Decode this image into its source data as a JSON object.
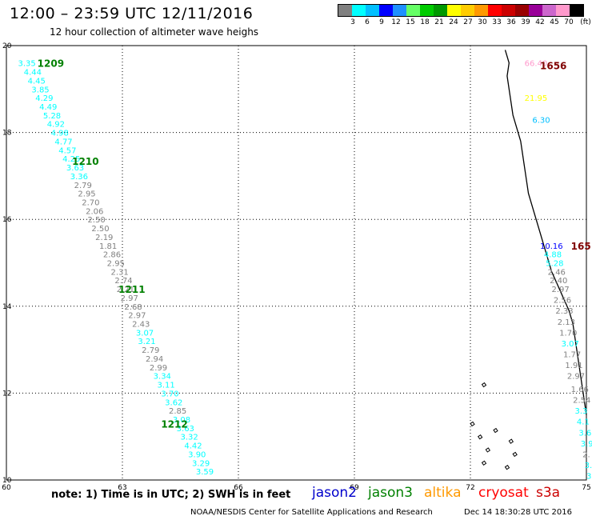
{
  "header": {
    "title": "12:00 – 23:59 UTC 12/11/2016",
    "subtitle": "12 hour collection of altimeter wave heighs"
  },
  "legend": {
    "colors": [
      "#808080",
      "#00ffff",
      "#00bfff",
      "#0000ff",
      "#1e90ff",
      "#66ff66",
      "#00cc00",
      "#009900",
      "#ffff00",
      "#ffcc00",
      "#ff9900",
      "#ff0000",
      "#cc0000",
      "#990000",
      "#990099",
      "#cc66cc",
      "#ff99cc",
      "#000000"
    ],
    "labels": [
      "3",
      "6",
      "9",
      "12",
      "15",
      "18",
      "21",
      "24",
      "27",
      "30",
      "33",
      "36",
      "39",
      "42",
      "45",
      "70"
    ],
    "unit": "(ft)"
  },
  "axes": {
    "x_ticks": [
      60,
      63,
      66,
      69,
      72,
      75
    ],
    "y_ticks": [
      10,
      12,
      14,
      16,
      18,
      20
    ],
    "xlim": [
      60,
      75
    ],
    "ylim": [
      10,
      20
    ]
  },
  "tracks": [
    {
      "points": [
        {
          "lon": 60.3,
          "lat": 19.6,
          "v": "3.35",
          "c": "#00ffff"
        },
        {
          "lon": 60.45,
          "lat": 19.4,
          "v": "4.44",
          "c": "#00ffff"
        },
        {
          "lon": 60.55,
          "lat": 19.2,
          "v": "4.45",
          "c": "#00ffff"
        },
        {
          "lon": 60.65,
          "lat": 19.0,
          "v": "3.85",
          "c": "#00ffff"
        },
        {
          "lon": 60.75,
          "lat": 18.8,
          "v": "4.29",
          "c": "#00ffff"
        },
        {
          "lon": 60.85,
          "lat": 18.6,
          "v": "4.49",
          "c": "#00ffff"
        },
        {
          "lon": 60.95,
          "lat": 18.4,
          "v": "5.28",
          "c": "#00ffff"
        },
        {
          "lon": 61.05,
          "lat": 18.2,
          "v": "4.92",
          "c": "#00ffff"
        },
        {
          "lon": 61.15,
          "lat": 18.0,
          "v": "4.98",
          "c": "#00ffff"
        },
        {
          "lon": 61.25,
          "lat": 17.8,
          "v": "4.77",
          "c": "#00ffff"
        },
        {
          "lon": 61.35,
          "lat": 17.6,
          "v": "4.57",
          "c": "#00ffff"
        },
        {
          "lon": 61.45,
          "lat": 17.4,
          "v": "4.25",
          "c": "#00ffff"
        },
        {
          "lon": 61.55,
          "lat": 17.2,
          "v": "3.63",
          "c": "#00ffff"
        },
        {
          "lon": 61.65,
          "lat": 17.0,
          "v": "3.36",
          "c": "#00ffff"
        },
        {
          "lon": 61.75,
          "lat": 16.8,
          "v": "2.79",
          "c": "#808080"
        },
        {
          "lon": 61.85,
          "lat": 16.6,
          "v": "2.95",
          "c": "#808080"
        },
        {
          "lon": 61.95,
          "lat": 16.4,
          "v": "2.70",
          "c": "#808080"
        },
        {
          "lon": 62.05,
          "lat": 16.2,
          "v": "2.06",
          "c": "#808080"
        },
        {
          "lon": 62.1,
          "lat": 16.0,
          "v": "2.50",
          "c": "#808080"
        },
        {
          "lon": 62.2,
          "lat": 15.8,
          "v": "2.50",
          "c": "#808080"
        },
        {
          "lon": 62.3,
          "lat": 15.6,
          "v": "2.19",
          "c": "#808080"
        },
        {
          "lon": 62.4,
          "lat": 15.4,
          "v": "1.81",
          "c": "#808080"
        },
        {
          "lon": 62.5,
          "lat": 15.2,
          "v": "2.86",
          "c": "#808080"
        },
        {
          "lon": 62.6,
          "lat": 15.0,
          "v": "2.95",
          "c": "#808080"
        },
        {
          "lon": 62.7,
          "lat": 14.8,
          "v": "2.31",
          "c": "#808080"
        },
        {
          "lon": 62.8,
          "lat": 14.6,
          "v": "2.74",
          "c": "#808080"
        },
        {
          "lon": 62.85,
          "lat": 14.4,
          "v": "2.21",
          "c": "#808080"
        },
        {
          "lon": 62.95,
          "lat": 14.2,
          "v": "2.97",
          "c": "#808080"
        },
        {
          "lon": 63.05,
          "lat": 14.0,
          "v": "2.68",
          "c": "#808080"
        },
        {
          "lon": 63.15,
          "lat": 13.8,
          "v": "2.97",
          "c": "#808080"
        },
        {
          "lon": 63.25,
          "lat": 13.6,
          "v": "2.43",
          "c": "#808080"
        },
        {
          "lon": 63.35,
          "lat": 13.4,
          "v": "3.07",
          "c": "#00ffff"
        },
        {
          "lon": 63.4,
          "lat": 13.2,
          "v": "3.21",
          "c": "#00ffff"
        },
        {
          "lon": 63.5,
          "lat": 13.0,
          "v": "2.79",
          "c": "#808080"
        },
        {
          "lon": 63.6,
          "lat": 12.8,
          "v": "2.94",
          "c": "#808080"
        },
        {
          "lon": 63.7,
          "lat": 12.6,
          "v": "2.99",
          "c": "#808080"
        },
        {
          "lon": 63.8,
          "lat": 12.4,
          "v": "3.34",
          "c": "#00ffff"
        },
        {
          "lon": 63.9,
          "lat": 12.2,
          "v": "3.11",
          "c": "#00ffff"
        },
        {
          "lon": 64.0,
          "lat": 12.0,
          "v": "3.70",
          "c": "#00ffff"
        },
        {
          "lon": 64.1,
          "lat": 11.8,
          "v": "3.62",
          "c": "#00ffff"
        },
        {
          "lon": 64.2,
          "lat": 11.6,
          "v": "2.85",
          "c": "#808080"
        },
        {
          "lon": 64.3,
          "lat": 11.4,
          "v": "3.08",
          "c": "#00ffff"
        },
        {
          "lon": 64.4,
          "lat": 11.2,
          "v": "3.63",
          "c": "#00ffff"
        },
        {
          "lon": 64.5,
          "lat": 11.0,
          "v": "3.32",
          "c": "#00ffff"
        },
        {
          "lon": 64.6,
          "lat": 10.8,
          "v": "4.42",
          "c": "#00ffff"
        },
        {
          "lon": 64.7,
          "lat": 10.6,
          "v": "3.90",
          "c": "#00ffff"
        },
        {
          "lon": 64.8,
          "lat": 10.4,
          "v": "3.29",
          "c": "#00ffff"
        },
        {
          "lon": 64.9,
          "lat": 10.2,
          "v": "3.59",
          "c": "#00ffff"
        }
      ]
    },
    {
      "points": [
        {
          "lon": 73.4,
          "lat": 19.6,
          "v": "66.40",
          "c": "#ff99cc"
        },
        {
          "lon": 73.4,
          "lat": 18.8,
          "v": "21.95",
          "c": "#ffff00"
        },
        {
          "lon": 73.6,
          "lat": 18.3,
          "v": "6.30",
          "c": "#00bfff"
        }
      ]
    },
    {
      "points": [
        {
          "lon": 73.8,
          "lat": 15.4,
          "v": "10.16",
          "c": "#0000ff"
        },
        {
          "lon": 73.9,
          "lat": 15.2,
          "v": "4.88",
          "c": "#00ffff"
        },
        {
          "lon": 73.95,
          "lat": 15.0,
          "v": "5.28",
          "c": "#00ffff"
        },
        {
          "lon": 74.0,
          "lat": 14.8,
          "v": "2.46",
          "c": "#808080"
        },
        {
          "lon": 74.05,
          "lat": 14.6,
          "v": "2.40",
          "c": "#808080"
        },
        {
          "lon": 74.1,
          "lat": 14.4,
          "v": "2.97",
          "c": "#808080"
        },
        {
          "lon": 74.15,
          "lat": 14.15,
          "v": "2.56",
          "c": "#808080"
        },
        {
          "lon": 74.2,
          "lat": 13.9,
          "v": "2.33",
          "c": "#808080"
        },
        {
          "lon": 74.25,
          "lat": 13.65,
          "v": "2.13",
          "c": "#808080"
        },
        {
          "lon": 74.3,
          "lat": 13.4,
          "v": "1.70",
          "c": "#808080"
        },
        {
          "lon": 74.35,
          "lat": 13.15,
          "v": "3.07",
          "c": "#00ffff"
        },
        {
          "lon": 74.4,
          "lat": 12.9,
          "v": "1.77",
          "c": "#808080"
        },
        {
          "lon": 74.45,
          "lat": 12.65,
          "v": "1.91",
          "c": "#808080"
        },
        {
          "lon": 74.5,
          "lat": 12.4,
          "v": "2.97",
          "c": "#808080"
        },
        {
          "lon": 74.6,
          "lat": 12.1,
          "v": "1.66",
          "c": "#808080"
        },
        {
          "lon": 74.65,
          "lat": 11.85,
          "v": "2.54",
          "c": "#808080"
        },
        {
          "lon": 74.7,
          "lat": 11.6,
          "v": "3.3",
          "c": "#00ffff"
        },
        {
          "lon": 74.75,
          "lat": 11.35,
          "v": "4.1",
          "c": "#00ffff"
        },
        {
          "lon": 74.8,
          "lat": 11.1,
          "v": "3.6",
          "c": "#00ffff"
        },
        {
          "lon": 74.85,
          "lat": 10.85,
          "v": "3.9",
          "c": "#00ffff"
        },
        {
          "lon": 74.9,
          "lat": 10.6,
          "v": "2.",
          "c": "#808080"
        },
        {
          "lon": 74.95,
          "lat": 10.35,
          "v": "3.",
          "c": "#00ffff"
        },
        {
          "lon": 75.0,
          "lat": 10.1,
          "v": "3",
          "c": "#00ffff"
        }
      ]
    }
  ],
  "time_labels": [
    {
      "lon": 60.8,
      "lat": 19.6,
      "text": "1209",
      "c": "#008000"
    },
    {
      "lon": 61.7,
      "lat": 17.35,
      "text": "1210",
      "c": "#008000"
    },
    {
      "lon": 62.9,
      "lat": 14.4,
      "text": "1211",
      "c": "#008000"
    },
    {
      "lon": 64.0,
      "lat": 11.3,
      "text": "1212",
      "c": "#008000"
    },
    {
      "lon": 73.8,
      "lat": 19.55,
      "text": "1656",
      "c": "#800000"
    },
    {
      "lon": 74.6,
      "lat": 15.4,
      "text": "165",
      "c": "#800000"
    }
  ],
  "footer": {
    "note": "note:  1) Time is in UTC;  2) SWH is in feet",
    "satellites": [
      {
        "name": "jason2",
        "color": "#0000cc"
      },
      {
        "name": "jason3",
        "color": "#008000"
      },
      {
        "name": "altika",
        "color": "#ff9900"
      },
      {
        "name": "cryosat",
        "color": "#ff0000"
      },
      {
        "name": "s3a",
        "color": "#cc0000"
      }
    ],
    "credit": "NOAA/NESDIS Center for Satellite Applications and Research",
    "timestamp": "Dec 14 18:30:28 UTC 2016"
  }
}
